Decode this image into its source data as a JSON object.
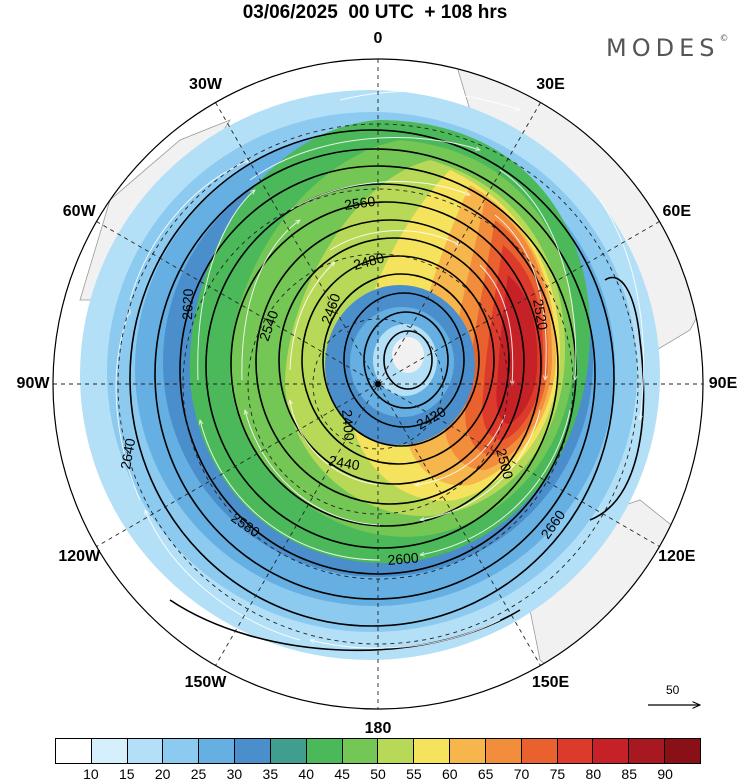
{
  "title": "03/06/2025  00 UTC  + 108 hrs",
  "brand": "MODES",
  "brand_mark": "©",
  "meridian_labels": [
    {
      "lon": 0,
      "label": "0"
    },
    {
      "lon": 30,
      "label": "30E"
    },
    {
      "lon": 60,
      "label": "60E"
    },
    {
      "lon": 90,
      "label": "90E"
    },
    {
      "lon": 120,
      "label": "120E"
    },
    {
      "lon": 150,
      "label": "150E"
    },
    {
      "lon": 180,
      "label": "180"
    },
    {
      "lon": -150,
      "label": "150W"
    },
    {
      "lon": -120,
      "label": "120W"
    },
    {
      "lon": -90,
      "label": "90W"
    },
    {
      "lon": -60,
      "label": "60W"
    },
    {
      "lon": -30,
      "label": "30W"
    }
  ],
  "reference_vector": {
    "value": "50"
  },
  "colorbar": {
    "colors": [
      "#ffffff",
      "#d6effc",
      "#b4e0f7",
      "#8ccaf0",
      "#65afe2",
      "#4a8fcb",
      "#3f9e8e",
      "#4bb85a",
      "#74c655",
      "#b8d957",
      "#f6e35d",
      "#f7b64c",
      "#f18d3b",
      "#e8612f",
      "#dc3b2c",
      "#c62126",
      "#a81820",
      "#8a1018"
    ],
    "ticks": [
      "10",
      "15",
      "20",
      "25",
      "30",
      "35",
      "40",
      "45",
      "50",
      "55",
      "60",
      "65",
      "70",
      "75",
      "80",
      "85",
      "90"
    ]
  },
  "contour_labels": [
    {
      "text": "2640"
    },
    {
      "text": "2620"
    },
    {
      "text": "2600"
    },
    {
      "text": "2580"
    },
    {
      "text": "2560"
    },
    {
      "text": "2540"
    },
    {
      "text": "2520"
    },
    {
      "text": "2500"
    },
    {
      "text": "2480"
    },
    {
      "text": "2460"
    },
    {
      "text": "2440"
    },
    {
      "text": "2420"
    },
    {
      "text": "2400"
    },
    {
      "text": "2660"
    }
  ]
}
